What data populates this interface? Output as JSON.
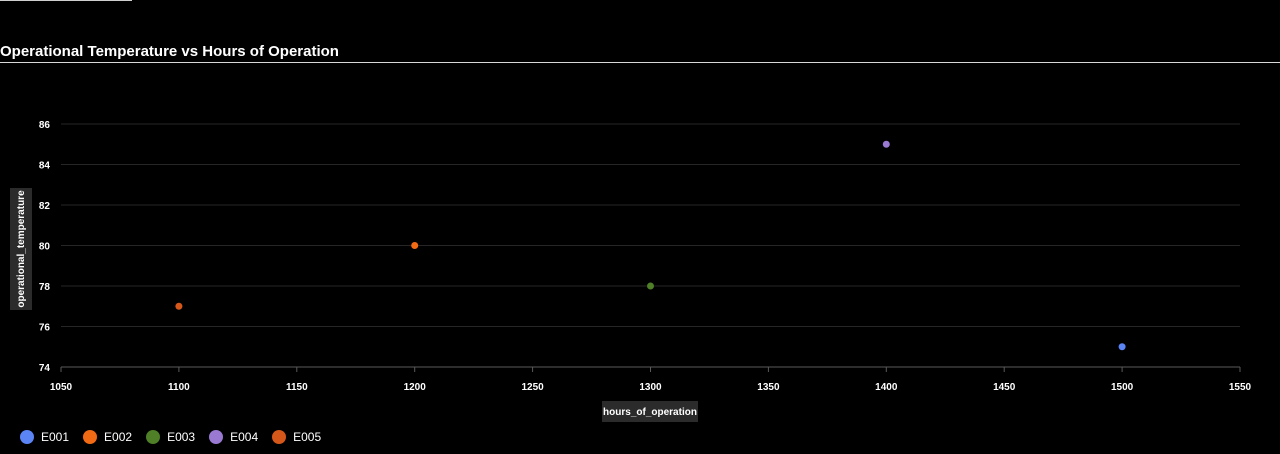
{
  "page": {
    "title": "Operational Temperature vs Hours of Operation"
  },
  "chart_data": {
    "type": "scatter",
    "title": "Operational Temperature vs Hours of Operation",
    "xlabel": "hours_of_operation",
    "ylabel": "operational_temperature",
    "xlim": [
      1050,
      1550
    ],
    "ylim": [
      74,
      86
    ],
    "xticks": [
      1050,
      1100,
      1150,
      1200,
      1250,
      1300,
      1350,
      1400,
      1450,
      1500,
      1550
    ],
    "yticks": [
      74,
      76,
      78,
      80,
      82,
      84,
      86
    ],
    "grid": "horizontal",
    "legend": "bottom-left",
    "series": [
      {
        "name": "E001",
        "color": "#5b84f5",
        "points": [
          {
            "x": 1500,
            "y": 75
          }
        ]
      },
      {
        "name": "E002",
        "color": "#f36a14",
        "points": [
          {
            "x": 1200,
            "y": 80
          }
        ]
      },
      {
        "name": "E003",
        "color": "#4f7f26",
        "points": [
          {
            "x": 1300,
            "y": 78
          }
        ]
      },
      {
        "name": "E004",
        "color": "#9a79d2",
        "points": [
          {
            "x": 1400,
            "y": 85
          }
        ]
      },
      {
        "name": "E005",
        "color": "#d5581a",
        "points": [
          {
            "x": 1100,
            "y": 77
          }
        ]
      }
    ]
  }
}
